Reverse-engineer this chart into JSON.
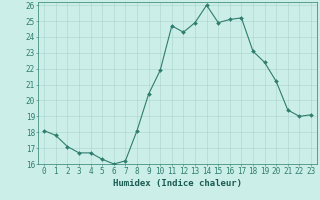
{
  "x": [
    0,
    1,
    2,
    3,
    4,
    5,
    6,
    7,
    8,
    9,
    10,
    11,
    12,
    13,
    14,
    15,
    16,
    17,
    18,
    19,
    20,
    21,
    22,
    23
  ],
  "y": [
    18.1,
    17.8,
    17.1,
    16.7,
    16.7,
    16.3,
    16.0,
    16.2,
    18.1,
    20.4,
    21.9,
    24.7,
    24.3,
    24.9,
    26.0,
    24.9,
    25.1,
    25.2,
    23.1,
    22.4,
    21.2,
    19.4,
    19.0,
    19.1
  ],
  "line_color": "#2e7d6e",
  "marker": "D",
  "marker_size": 2.0,
  "bg_color": "#cceee8",
  "grid_color": "#aad4ce",
  "xlabel": "Humidex (Indice chaleur)",
  "xlim": [
    -0.5,
    23.5
  ],
  "ylim": [
    16,
    26.2
  ],
  "yticks": [
    16,
    17,
    18,
    19,
    20,
    21,
    22,
    23,
    24,
    25,
    26
  ],
  "xticks": [
    0,
    1,
    2,
    3,
    4,
    5,
    6,
    7,
    8,
    9,
    10,
    11,
    12,
    13,
    14,
    15,
    16,
    17,
    18,
    19,
    20,
    21,
    22,
    23
  ],
  "tick_label_fontsize": 5.5,
  "xlabel_fontsize": 6.5,
  "axis_color": "#2e7d6e",
  "tick_color": "#2e7d6e",
  "label_color": "#1a5c52"
}
